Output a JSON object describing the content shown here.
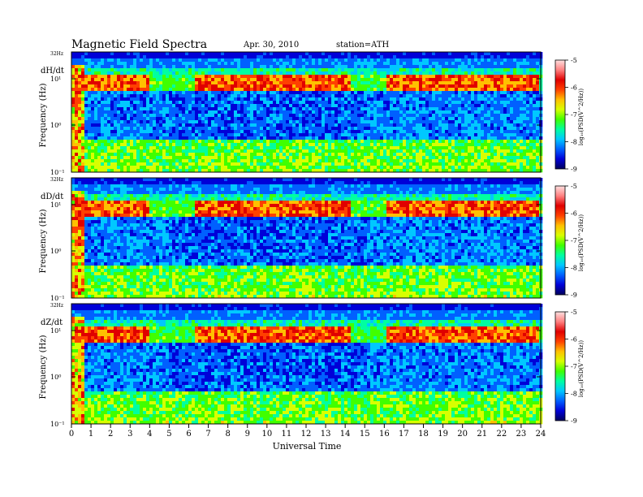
{
  "header": {
    "title": "Magnetic  Field  Spectra",
    "date": "Apr. 30, 2010",
    "station": "station=ATH"
  },
  "chart_data": {
    "type": "heatmap",
    "xlabel": "Universal Time",
    "xlim": [
      0,
      24
    ],
    "x_ticks": [
      "0",
      "1",
      "2",
      "3",
      "4",
      "5",
      "6",
      "7",
      "8",
      "9",
      "10",
      "11",
      "12",
      "13",
      "14",
      "15",
      "16",
      "17",
      "18",
      "19",
      "20",
      "21",
      "22",
      "23",
      "24"
    ],
    "y_scale": "log",
    "colorbar": {
      "label": "log₁₀(PSD(V^2/Hz))",
      "range": [
        -9,
        -5
      ],
      "ticks": [
        "-5",
        "-6",
        "-7",
        "-8",
        "-9"
      ],
      "colormap": [
        "#00005a",
        "#0000d8",
        "#0060ff",
        "#00c8ff",
        "#00ffa0",
        "#40ff00",
        "#d8ff00",
        "#ffc000",
        "#ff4000",
        "#e00000",
        "#ff8080",
        "#ffe0e0"
      ]
    },
    "panels": [
      {
        "name": "dH/dt",
        "ylabel": "Frequency  (Hz)",
        "top_label": "32Hz",
        "y_ticks": [
          "10¹",
          "10⁰",
          "10⁻¹"
        ],
        "bands": [
          [
            0.2,
            1.6
          ],
          [
            1.6,
            3.9
          ],
          [
            6.3,
            14.3
          ],
          [
            16,
            23.9
          ]
        ]
      },
      {
        "name": "dD/dt",
        "ylabel": "Frequency  (Hz)",
        "top_label": "32Hz",
        "y_ticks": [
          "10¹",
          "10⁰",
          "10⁻¹"
        ],
        "bands": [
          [
            0.2,
            1.6
          ],
          [
            1.6,
            3.9
          ],
          [
            6.3,
            14.3
          ],
          [
            16,
            23.9
          ]
        ]
      },
      {
        "name": "dZ/dt",
        "ylabel": "Frequency  (Hz)",
        "top_label": "32Hz",
        "y_ticks": [
          "10¹",
          "10⁰",
          "10⁻¹"
        ],
        "bands": [
          [
            0.2,
            1.6
          ],
          [
            1.6,
            3.9
          ],
          [
            6.3,
            14.3
          ],
          [
            16,
            23.9
          ]
        ]
      }
    ]
  }
}
